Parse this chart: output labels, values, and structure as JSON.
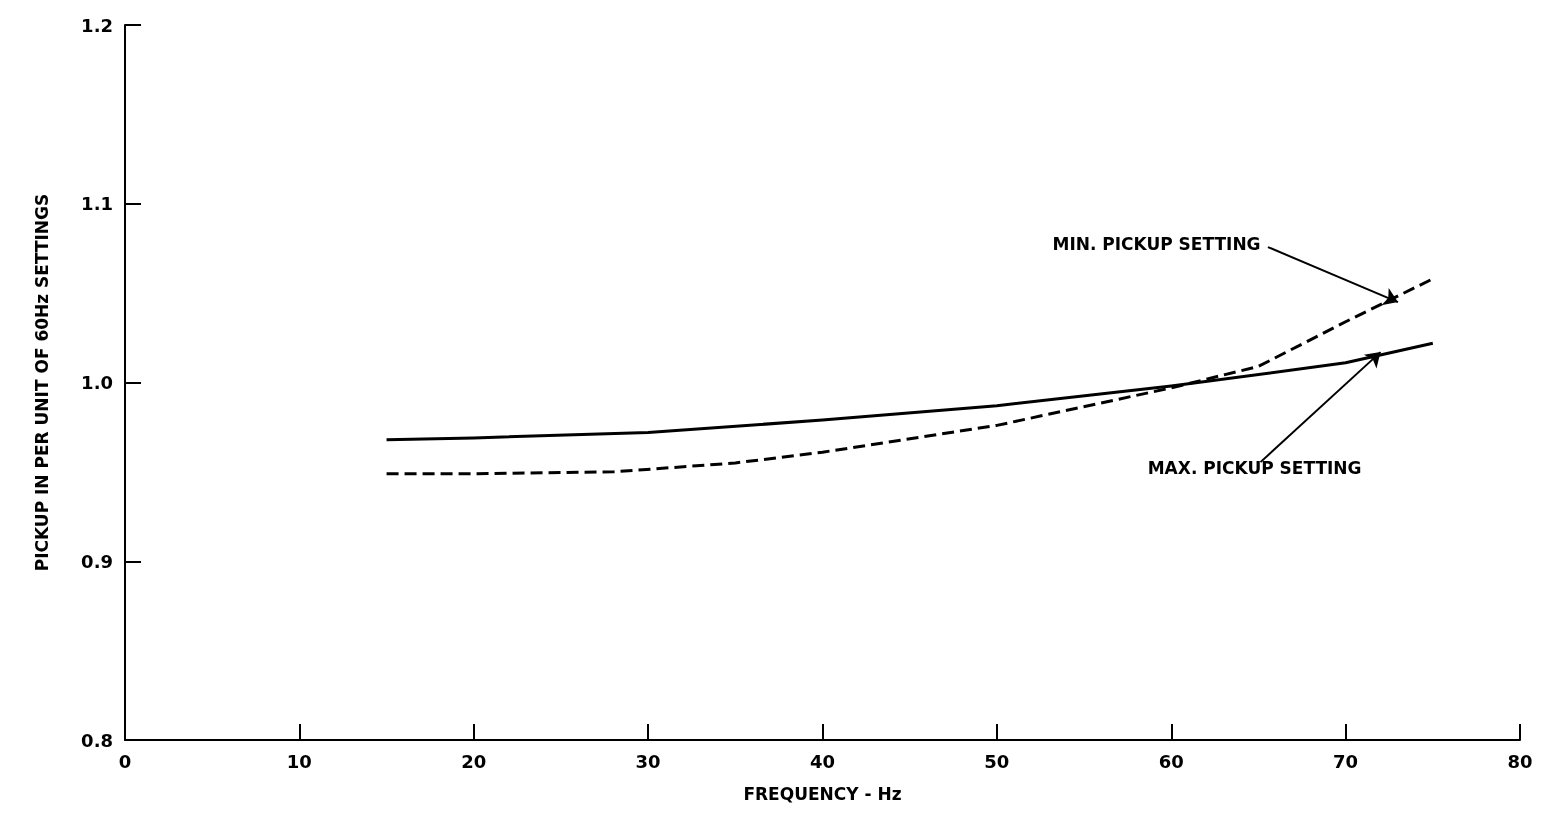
{
  "chart_data": {
    "type": "line",
    "xlabel": "FREQUENCY - Hz",
    "ylabel": "PICKUP IN PER UNIT OF 60Hz SETTINGS",
    "series": [
      {
        "color": "#000000",
        "line_style": "solid",
        "x": [
          15,
          20,
          30,
          40,
          50,
          60,
          70,
          75
        ],
        "values": [
          0.968,
          0.969,
          0.972,
          0.979,
          0.987,
          0.998,
          1.011,
          1.022
        ]
      },
      {
        "color": "#000000",
        "line_style": "dashed",
        "x": [
          15,
          20,
          28,
          35,
          40,
          50,
          60,
          65,
          70,
          75
        ],
        "values": [
          0.949,
          0.949,
          0.95,
          0.955,
          0.961,
          0.976,
          0.997,
          1.009,
          1.034,
          1.058
        ]
      }
    ],
    "annotations": [
      {
        "text": "MIN. PICKUP SETTING",
        "x": 73,
        "y": 1.045
      },
      {
        "text": "MAX. PICKUP SETTING",
        "x": 72,
        "y": 1.017
      }
    ],
    "xlim": [
      0,
      80
    ],
    "xticks": [
      0,
      10,
      20,
      30,
      40,
      50,
      60,
      70,
      80
    ],
    "ylim": [
      0.8,
      1.2
    ],
    "yticks": [
      0.8,
      0.9,
      {
        "value": 1.0,
        "label": "1.0"
      },
      1.1,
      1.2
    ],
    "grid": false,
    "marker": "none"
  }
}
